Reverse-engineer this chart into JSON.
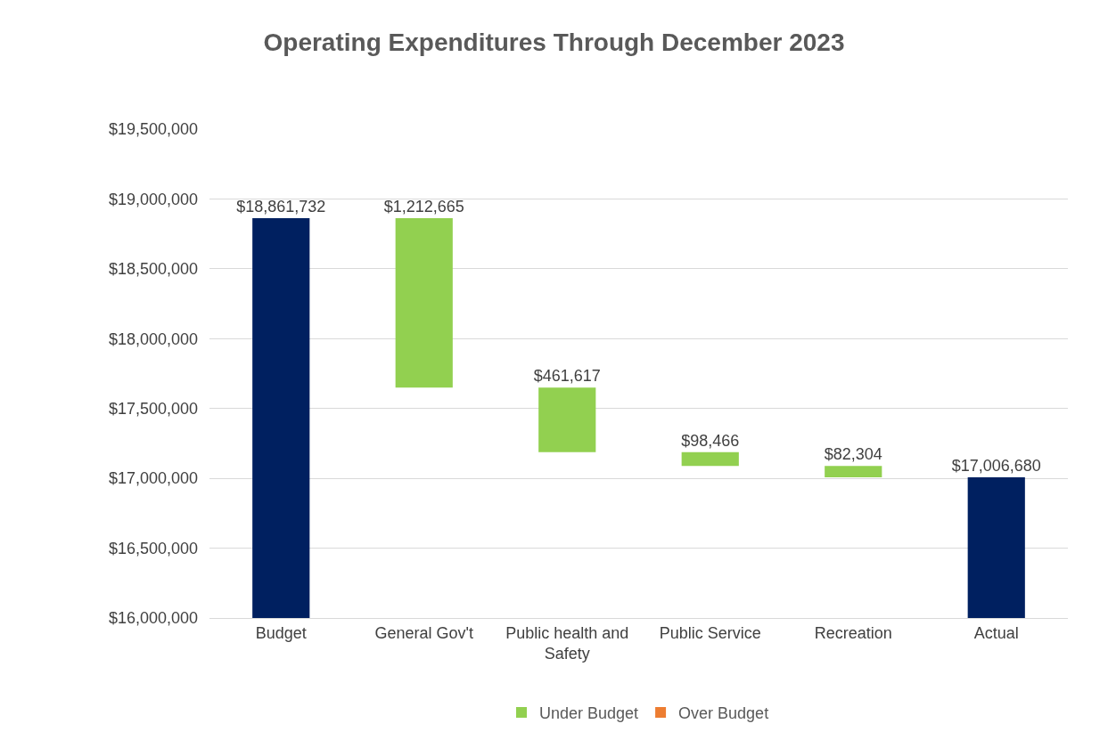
{
  "chart_data": {
    "type": "bar",
    "title": "Operating Expenditures Through December 2023",
    "categories": [
      "Budget",
      "General Gov't",
      "Public health and Safety",
      "Public Service",
      "Recreation",
      "Actual"
    ],
    "series": [
      {
        "color": "#002060",
        "values": [
          18861732,
          null,
          null,
          null,
          null,
          17006680
        ],
        "value_labels": [
          "$18,861,732",
          null,
          null,
          null,
          null,
          "$17,006,680"
        ]
      },
      {
        "name": "Under Budget",
        "color": "#92d050",
        "values": [
          null,
          1212665,
          461617,
          98466,
          82304,
          null
        ],
        "base": [
          null,
          17649067,
          17187450,
          17088984,
          17006680,
          null
        ],
        "value_labels": [
          null,
          "$1,212,665",
          "$461,617",
          "$98,466",
          "$82,304",
          null
        ]
      },
      {
        "name": "Over Budget",
        "color": "#ed7d31",
        "values": [
          null,
          null,
          null,
          null,
          null,
          null
        ]
      }
    ],
    "ylim": [
      16000000,
      19500000
    ],
    "yticks": [
      {
        "value": 16000000,
        "label": "$16,000,000"
      },
      {
        "value": 16500000,
        "label": "$16,500,000"
      },
      {
        "value": 17000000,
        "label": "$17,000,000"
      },
      {
        "value": 17500000,
        "label": "$17,500,000"
      },
      {
        "value": 18000000,
        "label": "$18,000,000"
      },
      {
        "value": 18500000,
        "label": "$18,500,000"
      },
      {
        "value": 19000000,
        "label": "$19,000,000"
      },
      {
        "value": 19500000,
        "label": "$19,500,000"
      }
    ],
    "grid": "y",
    "legend": "bottom"
  }
}
